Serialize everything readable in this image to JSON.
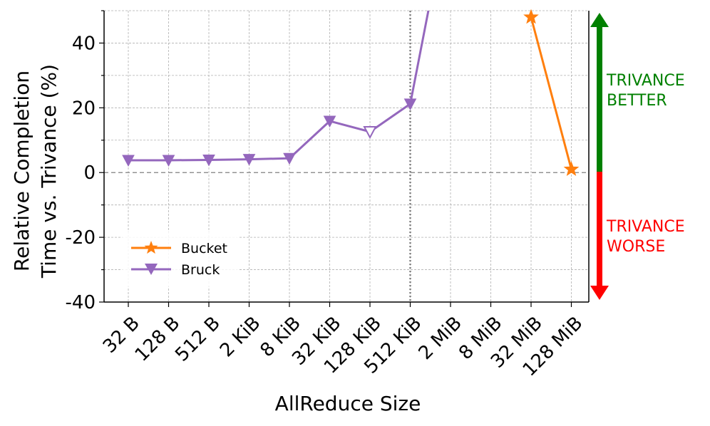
{
  "chart_data": {
    "type": "line",
    "xlabel": "AllReduce Size",
    "ylabel_lines": [
      "Relative Completion",
      "Time vs. Trivance (%)"
    ],
    "categories": [
      "32 B",
      "128 B",
      "512 B",
      "2 KiB",
      "8 KiB",
      "32 KiB",
      "128 KiB",
      "512 KiB",
      "2 MiB",
      "8 MiB",
      "32 MiB",
      "128 MiB"
    ],
    "yticks": [
      "40",
      "20",
      "0",
      "-20",
      "-40"
    ],
    "ylim": [
      -40,
      50
    ],
    "grid": true,
    "legend_position": "lower-left",
    "series": [
      {
        "name": "Bucket",
        "color": "#ff7f0e",
        "marker": "star",
        "points": [
          [
            10,
            48
          ],
          [
            11,
            1
          ]
        ]
      },
      {
        "name": "Bruck",
        "color": "#9467bd",
        "marker": "triangle-down",
        "points": [
          [
            0,
            3.8
          ],
          [
            1,
            3.8
          ],
          [
            2,
            3.9
          ],
          [
            3,
            4.1
          ],
          [
            4,
            4.4
          ],
          [
            5,
            15.9
          ],
          [
            6,
            12.6
          ],
          [
            7,
            21.2
          ],
          [
            7.45,
            50
          ]
        ],
        "hollow_index": 6
      }
    ],
    "reference_lines": {
      "horizontal_y": 0,
      "vertical_category": "512 KiB"
    },
    "annotations": [
      {
        "text_lines": [
          "TRIVANCE",
          "BETTER"
        ],
        "color": "#008000"
      },
      {
        "text_lines": [
          "TRIVANCE",
          "WORSE"
        ],
        "color": "#ff0000"
      }
    ]
  }
}
